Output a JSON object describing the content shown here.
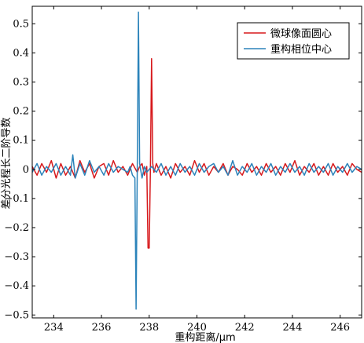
{
  "chart_data": {
    "type": "line",
    "xlabel": "重构距离/μm",
    "ylabel": "差分光程长二阶导数",
    "xlim": [
      233.1,
      246.9
    ],
    "ylim": [
      -0.51,
      0.56
    ],
    "xticks": [
      234,
      236,
      238,
      240,
      242,
      244,
      246
    ],
    "yticks": [
      -0.5,
      -0.4,
      -0.3,
      -0.2,
      -0.1,
      0,
      0.1,
      0.2,
      0.3,
      0.4,
      0.5
    ],
    "ytick_labels": [
      "−0.5",
      "−0.4",
      "−0.3",
      "−0.2",
      "−0.1",
      "0",
      "0.1",
      "0.2",
      "0.3",
      "0.4",
      "0.5"
    ],
    "legend_position": "top-right",
    "series": [
      {
        "name": "微球像面圆心",
        "color": "#d7191c",
        "x": [
          233.1,
          233.3,
          233.5,
          233.7,
          233.9,
          234.1,
          234.3,
          234.5,
          234.7,
          234.9,
          235.1,
          235.3,
          235.5,
          235.7,
          235.9,
          236.1,
          236.3,
          236.5,
          236.7,
          236.9,
          237.1,
          237.3,
          237.5,
          237.6,
          237.7,
          237.8,
          237.9,
          237.95,
          238.0,
          238.05,
          238.1,
          238.15,
          238.2,
          238.3,
          238.5,
          238.7,
          238.9,
          239.1,
          239.3,
          239.5,
          239.7,
          239.9,
          240.1,
          240.3,
          240.5,
          240.7,
          240.9,
          241.1,
          241.3,
          241.5,
          241.7,
          241.9,
          242.1,
          242.3,
          242.5,
          242.7,
          242.9,
          243.1,
          243.3,
          243.5,
          243.7,
          243.9,
          244.1,
          244.3,
          244.5,
          244.7,
          244.9,
          245.1,
          245.3,
          245.5,
          245.7,
          245.9,
          246.1,
          246.3,
          246.5,
          246.7,
          246.9
        ],
        "y": [
          0.01,
          -0.02,
          0.02,
          -0.01,
          0.03,
          -0.03,
          0.02,
          -0.02,
          0.01,
          -0.03,
          0.03,
          -0.01,
          0.02,
          -0.03,
          0.01,
          0.02,
          -0.02,
          0.03,
          -0.01,
          0.01,
          -0.02,
          0.02,
          -0.01,
          0.01,
          0.02,
          -0.02,
          0.01,
          -0.27,
          -0.27,
          0.0,
          0.38,
          0.02,
          -0.01,
          0.02,
          -0.02,
          0.01,
          -0.03,
          0.02,
          -0.01,
          0.01,
          -0.02,
          0.03,
          -0.01,
          0.02,
          -0.02,
          0.01,
          -0.01,
          0.02,
          -0.02,
          0.01,
          0.0,
          -0.02,
          0.02,
          -0.01,
          0.01,
          -0.02,
          0.02,
          -0.01,
          0.01,
          -0.02,
          0.02,
          -0.01,
          0.03,
          -0.02,
          0.01,
          -0.01,
          0.02,
          -0.02,
          0.01,
          -0.02,
          0.02,
          -0.01,
          0.01,
          -0.02,
          0.02,
          0.0,
          -0.01
        ]
      },
      {
        "name": "重构相位中心",
        "color": "#2b83ba",
        "x": [
          233.1,
          233.3,
          233.5,
          233.7,
          233.9,
          234.1,
          234.3,
          234.5,
          234.7,
          234.8,
          234.9,
          235.1,
          235.3,
          235.5,
          235.7,
          235.9,
          236.1,
          236.3,
          236.5,
          236.7,
          236.9,
          237.1,
          237.2,
          237.3,
          237.4,
          237.45,
          237.5,
          237.55,
          237.6,
          237.7,
          237.8,
          237.9,
          238.1,
          238.3,
          238.5,
          238.7,
          238.9,
          239.1,
          239.3,
          239.5,
          239.7,
          239.9,
          240.1,
          240.3,
          240.5,
          240.7,
          240.9,
          241.1,
          241.3,
          241.5,
          241.7,
          241.9,
          242.1,
          242.3,
          242.5,
          242.7,
          242.9,
          243.1,
          243.3,
          243.5,
          243.7,
          243.9,
          244.1,
          244.3,
          244.5,
          244.7,
          244.9,
          245.1,
          245.3,
          245.5,
          245.7,
          245.9,
          246.1,
          246.3,
          246.5,
          246.7,
          246.9
        ],
        "y": [
          -0.01,
          0.02,
          -0.02,
          0.01,
          -0.01,
          0.02,
          -0.02,
          0.01,
          -0.02,
          0.05,
          -0.03,
          0.02,
          -0.02,
          0.03,
          -0.01,
          0.01,
          -0.02,
          0.02,
          -0.01,
          0.01,
          0.0,
          -0.01,
          0.01,
          -0.02,
          -0.03,
          -0.48,
          0.0,
          0.54,
          0.02,
          -0.03,
          0.01,
          -0.01,
          0.01,
          -0.01,
          0.02,
          -0.02,
          0.01,
          -0.02,
          0.02,
          -0.01,
          0.01,
          -0.02,
          0.02,
          -0.01,
          0.01,
          0.02,
          -0.01,
          0.01,
          -0.02,
          0.03,
          -0.02,
          0.01,
          -0.01,
          0.02,
          -0.02,
          0.01,
          -0.01,
          0.02,
          -0.02,
          0.01,
          -0.01,
          0.02,
          -0.01,
          0.01,
          -0.02,
          0.02,
          -0.01,
          0.01,
          -0.01,
          0.02,
          -0.02,
          0.01,
          -0.01,
          0.02,
          -0.01,
          0.01,
          0.0
        ]
      }
    ]
  }
}
